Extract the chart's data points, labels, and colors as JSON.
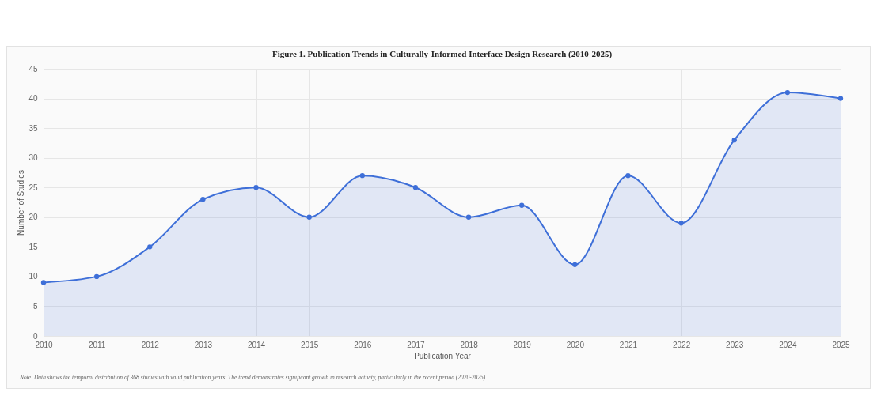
{
  "chart_data": {
    "type": "area",
    "title": "Figure 1. Publication Trends in Culturally-Informed Interface Design Research (2010-2025)",
    "xlabel": "Publication Year",
    "ylabel": "Number of Studies",
    "categories": [
      "2010",
      "2011",
      "2012",
      "2013",
      "2014",
      "2015",
      "2016",
      "2017",
      "2018",
      "2019",
      "2020",
      "2021",
      "2022",
      "2023",
      "2024",
      "2025"
    ],
    "series": [
      {
        "color": "#3e6fd8",
        "values": [
          9,
          10,
          15,
          23,
          25,
          20,
          27,
          25,
          20,
          22,
          12,
          27,
          19,
          33,
          41,
          40
        ]
      }
    ],
    "ylim": [
      0,
      45
    ],
    "yticks": [
      0,
      5,
      10,
      15,
      20,
      25,
      30,
      35,
      40,
      45
    ],
    "grid": true,
    "marker": "circle",
    "line_style": "solid",
    "annotations": [
      "Note. Data shows the temporal distribution of 368 studies with valid publication years. The trend demonstrates significant growth in research activity, particularly in the recent period (2020-2025)."
    ]
  }
}
